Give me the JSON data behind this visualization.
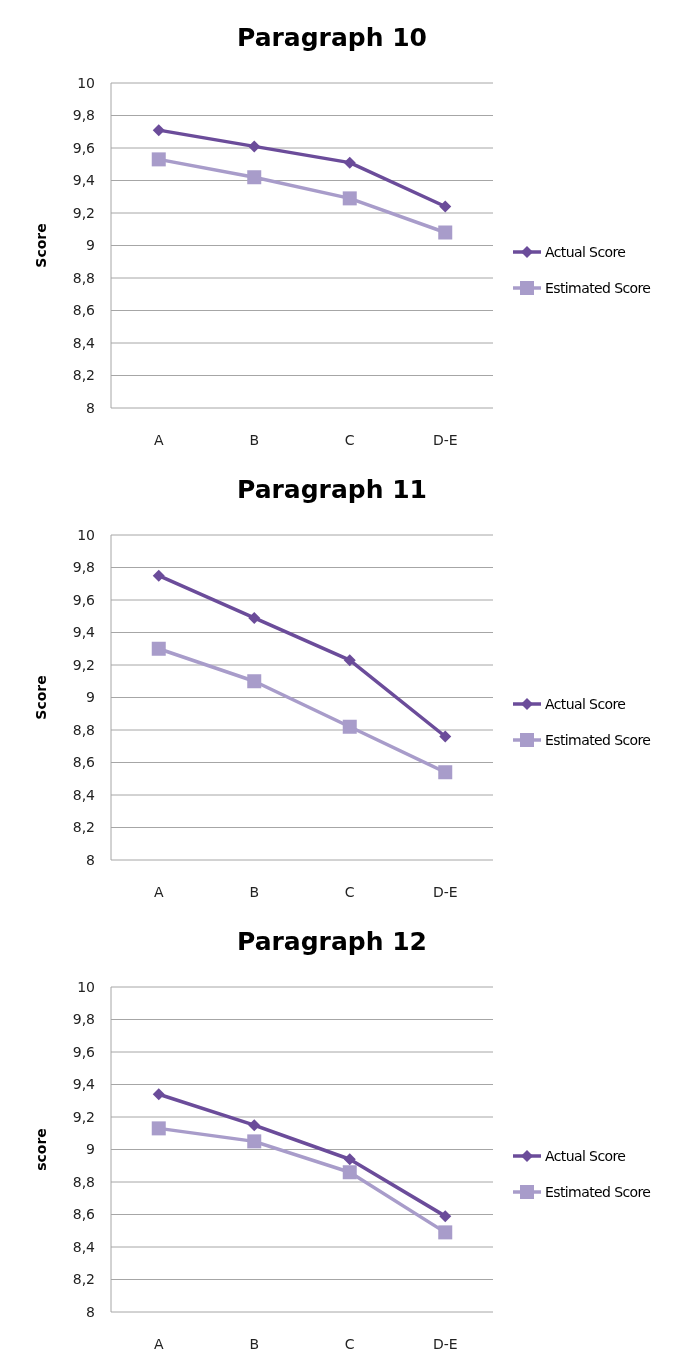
{
  "chart_data": [
    {
      "type": "line",
      "title": "Paragraph 10",
      "ylabel": "Score",
      "categories": [
        "A",
        "B",
        "C",
        "D-E"
      ],
      "series": [
        {
          "name": "Actual Score",
          "color": "#6b4c9a",
          "marker": "diamond",
          "values": [
            9.71,
            9.61,
            9.51,
            9.24
          ]
        },
        {
          "name": "Estimated Score",
          "color": "#a89cca",
          "marker": "square",
          "values": [
            9.53,
            9.42,
            9.29,
            9.08
          ]
        }
      ],
      "ylim": [
        8,
        10
      ],
      "yticks": [
        8,
        {
          "value": 8.2,
          "label": "8,2"
        },
        {
          "value": 8.4,
          "label": "8,4"
        },
        {
          "value": 8.6,
          "label": "8,6"
        },
        {
          "value": 8.8,
          "label": "8,8"
        },
        9,
        {
          "value": 9.2,
          "label": "9,2"
        },
        {
          "value": 9.4,
          "label": "9,4"
        },
        {
          "value": 9.6,
          "label": "9,6"
        },
        {
          "value": 9.8,
          "label": "9,8"
        },
        10
      ],
      "grid": "y",
      "legend": "right",
      "line_style": "solid"
    },
    {
      "type": "line",
      "title": "Paragraph 11",
      "ylabel": "Score",
      "categories": [
        "A",
        "B",
        "C",
        "D-E"
      ],
      "series": [
        {
          "name": "Actual Score",
          "color": "#6b4c9a",
          "marker": "diamond",
          "values": [
            9.75,
            9.49,
            9.23,
            8.76
          ]
        },
        {
          "name": "Estimated Score",
          "color": "#a89cca",
          "marker": "square",
          "values": [
            9.3,
            9.1,
            8.82,
            8.54
          ]
        }
      ],
      "ylim": [
        8,
        10
      ],
      "yticks": [
        8,
        {
          "value": 8.2,
          "label": "8,2"
        },
        {
          "value": 8.4,
          "label": "8,4"
        },
        {
          "value": 8.6,
          "label": "8,6"
        },
        {
          "value": 8.8,
          "label": "8,8"
        },
        9,
        {
          "value": 9.2,
          "label": "9,2"
        },
        {
          "value": 9.4,
          "label": "9,4"
        },
        {
          "value": 9.6,
          "label": "9,6"
        },
        {
          "value": 9.8,
          "label": "9,8"
        },
        10
      ],
      "grid": "y",
      "legend": "right",
      "line_style": "solid"
    },
    {
      "type": "line",
      "title": "Paragraph 12",
      "ylabel": "score",
      "categories": [
        "A",
        "B",
        "C",
        "D-E"
      ],
      "series": [
        {
          "name": "Actual Score",
          "color": "#6b4c9a",
          "marker": "diamond",
          "values": [
            9.34,
            9.15,
            8.94,
            8.59
          ]
        },
        {
          "name": "Estimated Score",
          "color": "#a89cca",
          "marker": "square",
          "values": [
            9.13,
            9.05,
            8.86,
            8.49
          ]
        }
      ],
      "ylim": [
        8,
        10
      ],
      "yticks": [
        8,
        {
          "value": 8.2,
          "label": "8,2"
        },
        {
          "value": 8.4,
          "label": "8,4"
        },
        {
          "value": 8.6,
          "label": "8,6"
        },
        {
          "value": 8.8,
          "label": "8,8"
        },
        9,
        {
          "value": 9.2,
          "label": "9,2"
        },
        {
          "value": 9.4,
          "label": "9,4"
        },
        {
          "value": 9.6,
          "label": "9,6"
        },
        {
          "value": 9.8,
          "label": "9,8"
        },
        10
      ],
      "grid": "y",
      "legend": "right",
      "line_style": "solid"
    }
  ]
}
